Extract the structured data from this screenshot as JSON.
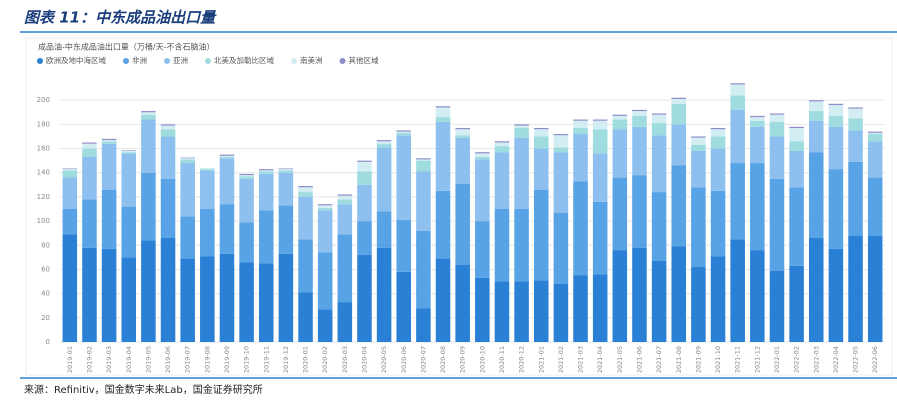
{
  "chart_data": {
    "type": "stacked_bar",
    "title": "图表 11：中东成品油出口量",
    "subtitle": "成品油-中东成品油出口量（万桶/天-不含石脑油）",
    "source": "来源：Refinitiv，国金数字未来Lab，国金证券研究所",
    "categories": [
      "2019-01",
      "2019-02",
      "2019-03",
      "2019-04",
      "2019-05",
      "2019-06",
      "2019-07",
      "2019-08",
      "2019-09",
      "2019-10",
      "2019-11",
      "2019-12",
      "2020-01",
      "2020-02",
      "2020-03",
      "2020-04",
      "2020-05",
      "2020-06",
      "2020-07",
      "2020-08",
      "2020-09",
      "2020-10",
      "2020-11",
      "2020-12",
      "2021-01",
      "2021-02",
      "2021-03",
      "2021-04",
      "2021-05",
      "2021-06",
      "2021-07",
      "2021-08",
      "2021-09",
      "2021-10",
      "2021-11",
      "2021-12",
      "2022-01",
      "2022-02",
      "2022-03",
      "2022-04",
      "2022-05",
      "2022-06"
    ],
    "series": [
      {
        "name": "欧洲及地中海区域",
        "color": "#2a80d5",
        "values": [
          89,
          78,
          77,
          70,
          84,
          86,
          69,
          71,
          73,
          66,
          65,
          73,
          41,
          27,
          33,
          72,
          78,
          58,
          28,
          69,
          64,
          53,
          50,
          50,
          51,
          48,
          55,
          56,
          76,
          78,
          67,
          79,
          62,
          71,
          85,
          76,
          59,
          63,
          86,
          77,
          88,
          88
        ]
      },
      {
        "name": "非洲",
        "color": "#58a2e6",
        "values": [
          21,
          40,
          49,
          42,
          56,
          49,
          35,
          39,
          41,
          33,
          44,
          40,
          44,
          47,
          56,
          28,
          30,
          43,
          64,
          56,
          67,
          47,
          60,
          60,
          75,
          59,
          78,
          60,
          60,
          60,
          57,
          67,
          66,
          54,
          63,
          72,
          76,
          65,
          71,
          66,
          61,
          48
        ]
      },
      {
        "name": "亚洲",
        "color": "#8ec0ef",
        "values": [
          26,
          35,
          38,
          44,
          44,
          35,
          44,
          32,
          38,
          36,
          30,
          27,
          35,
          35,
          25,
          30,
          53,
          70,
          49,
          57,
          38,
          51,
          47,
          59,
          34,
          50,
          39,
          40,
          40,
          40,
          47,
          34,
          30,
          35,
          44,
          30,
          35,
          30,
          26,
          35,
          26,
          30
        ]
      },
      {
        "name": "北美及加勒比区域",
        "color": "#9edcdf",
        "values": [
          6,
          7,
          2,
          1,
          4,
          6,
          3,
          1,
          1,
          2,
          2,
          2,
          4,
          2,
          4,
          11,
          3,
          2,
          9,
          4,
          2,
          2,
          5,
          8,
          10,
          4,
          5,
          20,
          8,
          9,
          10,
          17,
          5,
          10,
          12,
          5,
          12,
          8,
          8,
          9,
          10,
          6
        ]
      },
      {
        "name": "南美洲",
        "color": "#d3eef3",
        "values": [
          1,
          4,
          1,
          1,
          2,
          3,
          1,
          1,
          1,
          1,
          1,
          1,
          4,
          2,
          3,
          8,
          2,
          1,
          1,
          8,
          5,
          3,
          3,
          2,
          6,
          10,
          6,
          7,
          3,
          4,
          7,
          4,
          6,
          6,
          9,
          3,
          6,
          11,
          8,
          9,
          8,
          1
        ]
      },
      {
        "name": "其他区域",
        "color": "#8f8ec9",
        "values": [
          0.5,
          1,
          1,
          0.5,
          1,
          1,
          0.5,
          0,
          1,
          1,
          1,
          0.5,
          1,
          1,
          1,
          1,
          1,
          1,
          1,
          1,
          1,
          1,
          1,
          1,
          1,
          1,
          1,
          1,
          1,
          1,
          1,
          1,
          1,
          1,
          1,
          1,
          1,
          1,
          1,
          1,
          1,
          1
        ]
      }
    ],
    "ylim": [
      0,
      220
    ],
    "yticks": [
      0,
      20,
      40,
      60,
      80,
      100,
      120,
      140,
      160,
      180,
      200
    ],
    "grid": true
  }
}
